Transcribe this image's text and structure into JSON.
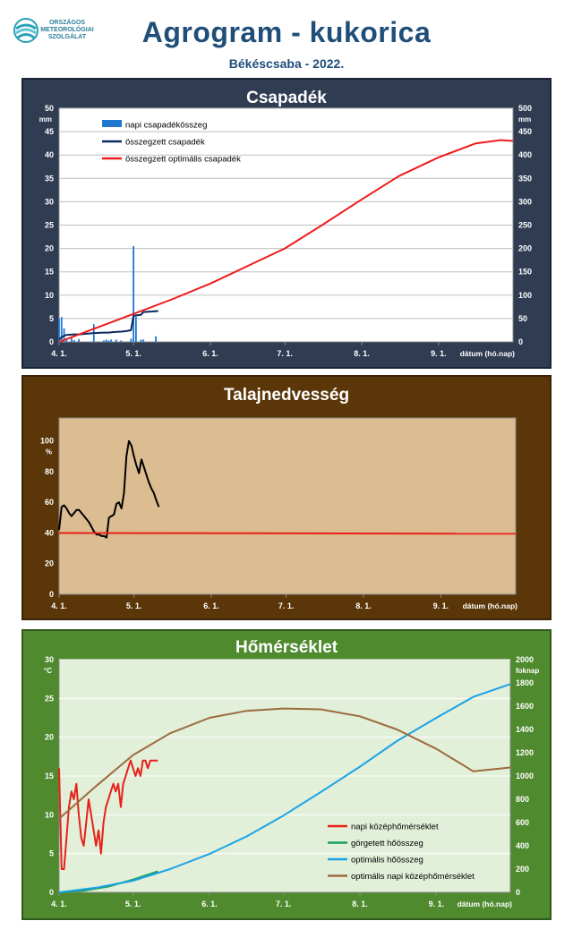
{
  "header": {
    "logo_text": [
      "ORSZÁGOS",
      "METEOROLÓGIAI",
      "SZOLGÁLAT"
    ],
    "title": "Agrogram - kukorica",
    "subtitle": "Békéscsaba - 2022."
  },
  "colors": {
    "header_blue": "#1f4e79",
    "precip_bg": "#2f3c52",
    "soil_bg": "#5a3608",
    "temp_bg": "#4f8a2f"
  },
  "chart_data": [
    {
      "type": "bar",
      "title": "Csapadék",
      "xlabel": "dátum (hó.nap)",
      "ylabel": "mm",
      "y2label": "mm",
      "x_ticks": [
        "4. 1.",
        "5. 1.",
        "6. 1.",
        "7. 1.",
        "8. 1.",
        "9. 1."
      ],
      "x_tick_days": [
        0,
        30,
        61,
        91,
        122,
        153
      ],
      "x_range": [
        0,
        183
      ],
      "ylim": [
        0,
        50
      ],
      "y_ticks": [
        0,
        5,
        10,
        15,
        20,
        25,
        30,
        35,
        40,
        45,
        50
      ],
      "y2lim": [
        0,
        500
      ],
      "y2_ticks": [
        0,
        50,
        100,
        150,
        200,
        250,
        300,
        350,
        400,
        450,
        500
      ],
      "legend_position": "top-left",
      "series": [
        {
          "name": "napi csapadékösszeg",
          "color": "#1f77d0",
          "axis": "left",
          "kind": "bar",
          "x": [
            0,
            1,
            2,
            3,
            5,
            6,
            8,
            14,
            18,
            19,
            20,
            21,
            23,
            25,
            29,
            30,
            31,
            33,
            34,
            39
          ],
          "y": [
            5.0,
            5.3,
            2.9,
            0.5,
            1.0,
            0.4,
            0.6,
            3.8,
            0.3,
            0.5,
            0.3,
            0.5,
            0.5,
            0.3,
            0.7,
            20.5,
            5.4,
            0.5,
            0.5,
            1.2
          ]
        },
        {
          "name": "összegzett csapadék",
          "color": "#0c2a5c",
          "axis": "right",
          "kind": "line",
          "x": [
            0,
            1,
            2,
            3,
            6,
            8,
            14,
            18,
            20,
            22,
            25,
            27,
            29,
            30,
            33,
            34,
            37,
            40
          ],
          "y": [
            5,
            10,
            13,
            15,
            16,
            16,
            19,
            20,
            20,
            21,
            22,
            23,
            25,
            56,
            58,
            64,
            65,
            66
          ]
        },
        {
          "name": "összegzett optimális  csapadék",
          "color": "#ee1c1c",
          "axis": "right",
          "kind": "line",
          "x": [
            0,
            15,
            30,
            45,
            61,
            75,
            91,
            106,
            122,
            137,
            153,
            168,
            178,
            183
          ],
          "y": [
            0,
            30,
            60,
            90,
            125,
            160,
            200,
            250,
            305,
            355,
            395,
            425,
            432,
            430
          ]
        }
      ]
    },
    {
      "type": "line",
      "title": "Talajnedvesség",
      "xlabel": "dátum (hó.nap)",
      "ylabel": "%",
      "x_ticks": [
        "4. 1.",
        "5. 1.",
        "6. 1.",
        "7. 1.",
        "8. 1.",
        "9. 1."
      ],
      "x_tick_days": [
        0,
        30,
        61,
        91,
        122,
        153
      ],
      "x_range": [
        0,
        183
      ],
      "ylim": [
        0,
        115
      ],
      "y_ticks": [
        0,
        20,
        40,
        60,
        80,
        100
      ],
      "series": [
        {
          "name": "",
          "color": "#000000",
          "x": [
            0,
            1,
            2,
            3,
            4,
            5,
            6,
            7,
            8,
            9,
            10,
            11,
            12,
            13,
            14,
            15,
            16,
            17,
            18,
            19,
            20,
            21,
            22,
            23,
            24,
            25,
            26,
            27,
            28,
            29,
            30,
            31,
            32,
            33,
            34,
            35,
            36,
            37,
            38,
            39,
            40
          ],
          "y": [
            42,
            57,
            58,
            56,
            53,
            51,
            53,
            55,
            55,
            53,
            51,
            49,
            47,
            44,
            41,
            39,
            39,
            38,
            38,
            37,
            50,
            51,
            52,
            59,
            60,
            56,
            66,
            90,
            100,
            97,
            90,
            84,
            79,
            88,
            83,
            78,
            73,
            69,
            66,
            61,
            57
          ]
        },
        {
          "name": "",
          "color": "#e8211a",
          "x": [
            0,
            183
          ],
          "y": [
            40,
            39.5
          ]
        }
      ]
    },
    {
      "type": "line",
      "title": "Hőmérséklet",
      "xlabel": "dátum (hó.nap)",
      "ylabel": "°C",
      "y2label": "foknap",
      "x_ticks": [
        "4. 1.",
        "5. 1.",
        "6. 1.",
        "7. 1.",
        "8. 1.",
        "9. 1."
      ],
      "x_tick_days": [
        0,
        30,
        61,
        91,
        122,
        153
      ],
      "x_range": [
        0,
        183
      ],
      "ylim": [
        0,
        30
      ],
      "y_ticks": [
        0,
        5,
        10,
        15,
        20,
        25,
        30
      ],
      "y2lim": [
        0,
        2000
      ],
      "y2_ticks": [
        0,
        200,
        400,
        600,
        800,
        1000,
        1200,
        1400,
        1600,
        1800,
        2000
      ],
      "legend_position": "bottom-right",
      "series": [
        {
          "name": "napi középhőmérséklet",
          "color": "#e8211a",
          "axis": "left",
          "x": [
            0,
            1,
            2,
            3,
            4,
            5,
            6,
            7,
            8,
            9,
            10,
            11,
            12,
            13,
            14,
            15,
            16,
            17,
            18,
            19,
            20,
            21,
            22,
            23,
            24,
            25,
            26,
            27,
            28,
            29,
            30,
            31,
            32,
            33,
            34,
            35,
            36,
            37,
            38,
            39,
            40
          ],
          "y": [
            16,
            3,
            3,
            7,
            11,
            13,
            12,
            14,
            10,
            7,
            6,
            9,
            12,
            10,
            8,
            6,
            8,
            5,
            9,
            11,
            12,
            13,
            14,
            13,
            14,
            11,
            14,
            15,
            16,
            17,
            16,
            15,
            16,
            15,
            17,
            17,
            16,
            17,
            17,
            17,
            17
          ]
        },
        {
          "name": "görgetett hőösszeg",
          "color": "#1aa05a",
          "axis": "right",
          "x": [
            0,
            10,
            20,
            30,
            40
          ],
          "y": [
            0,
            15,
            50,
            110,
            180
          ]
        },
        {
          "name": "optimális hőösszeg",
          "color": "#1aa3e8",
          "axis": "right",
          "x": [
            0,
            15,
            30,
            45,
            61,
            76,
            91,
            106,
            122,
            137,
            153,
            168,
            183
          ],
          "y": [
            0,
            40,
            100,
            200,
            330,
            480,
            660,
            860,
            1080,
            1300,
            1500,
            1680,
            1790
          ]
        },
        {
          "name": "optimális napi középhőmérséklet",
          "color": "#9c6b3c",
          "axis": "left",
          "x": [
            0,
            15,
            30,
            45,
            61,
            76,
            91,
            106,
            122,
            137,
            153,
            168,
            183
          ],
          "y": [
            9.5,
            13.7,
            17.7,
            20.5,
            22.5,
            23.4,
            23.7,
            23.6,
            22.7,
            21.0,
            18.5,
            15.6,
            16.1
          ]
        }
      ]
    }
  ]
}
